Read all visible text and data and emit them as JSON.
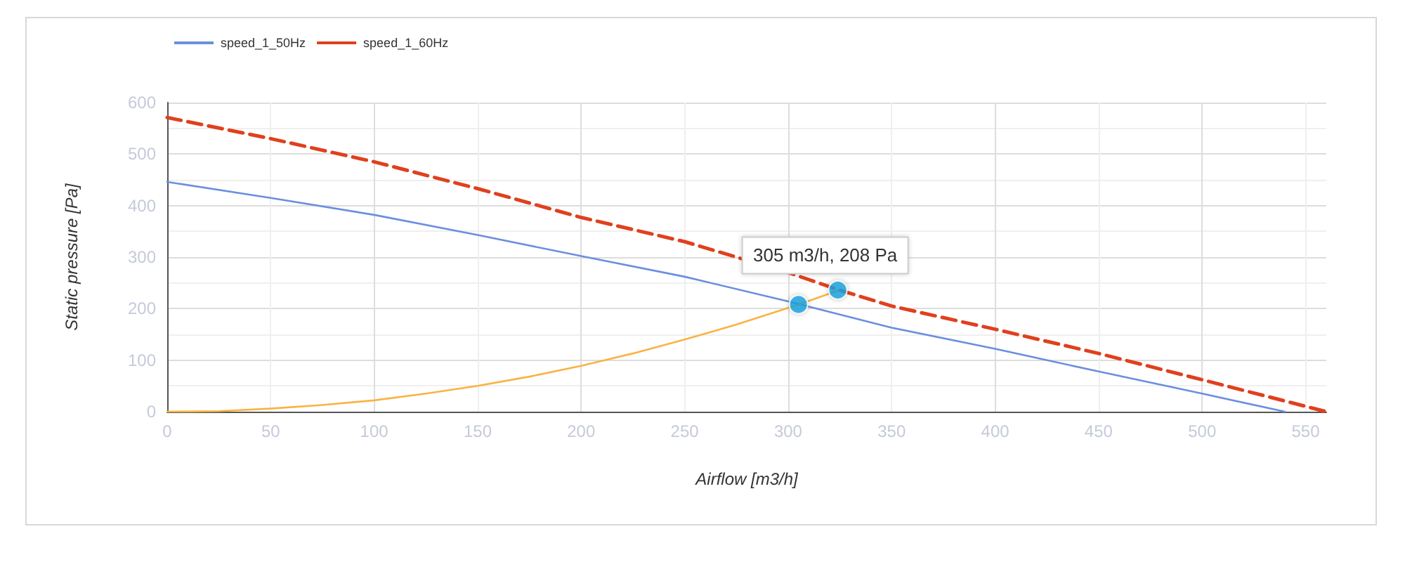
{
  "chart_data": {
    "type": "line",
    "xlabel": "Airflow [m3/h]",
    "ylabel": "Static pressure [Pa]",
    "xlim": [
      0,
      560
    ],
    "xticks": [
      0,
      50,
      100,
      150,
      200,
      250,
      300,
      350,
      400,
      450,
      500,
      550
    ],
    "ylim": [
      0,
      600
    ],
    "yticks": [
      0,
      100,
      200,
      300,
      400,
      500,
      600
    ],
    "grid": true,
    "legend": "top left",
    "marker": "none",
    "series": [
      {
        "name": "speed_1_50Hz",
        "color": "#6b8fdf",
        "line_style": "solid",
        "x": [
          0,
          50,
          100,
          150,
          200,
          250,
          300,
          350,
          400,
          450,
          500,
          540
        ],
        "values": [
          446,
          415,
          382,
          343,
          302,
          262,
          214,
          163,
          122,
          78,
          35,
          0
        ]
      },
      {
        "name": "speed_1_60Hz",
        "color": "#e0401e",
        "line_style": "dashed",
        "x": [
          0,
          50,
          100,
          150,
          200,
          250,
          300,
          324,
          350,
          400,
          450,
          500,
          560
        ],
        "values": [
          571,
          530,
          485,
          433,
          377,
          330,
          270,
          237,
          205,
          160,
          113,
          62,
          0
        ]
      },
      {
        "color": "#f9b343",
        "line_style": "solid",
        "x": [
          0,
          25,
          50,
          75,
          100,
          125,
          150,
          175,
          200,
          225,
          250,
          275,
          305,
          324
        ],
        "values": [
          0,
          1,
          6,
          13,
          22,
          35,
          50,
          68,
          89,
          113,
          140,
          169,
          208,
          235
        ]
      },
      {
        "type": "scatter",
        "marker": "circle",
        "color": "#1aa3e0",
        "x": [
          305,
          324
        ],
        "values": [
          208,
          236
        ]
      }
    ],
    "annotations": [
      {
        "text": "305 m3/h, 208 Pa",
        "x": 305,
        "y": 208
      }
    ]
  }
}
